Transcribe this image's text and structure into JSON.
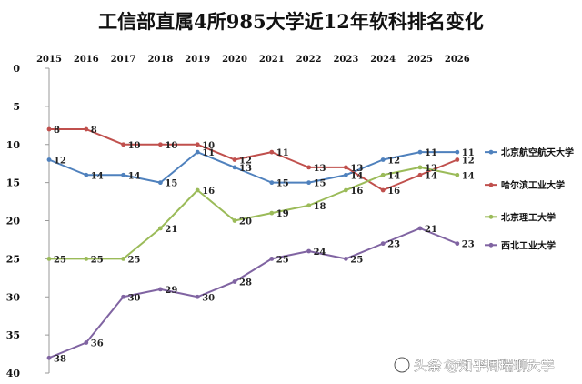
{
  "chart_data": {
    "type": "line",
    "title": "工信部直属4所985大学近12年软科排名变化",
    "x": [
      "2015",
      "2016",
      "2017",
      "2018",
      "2019",
      "2020",
      "2021",
      "2022",
      "2023",
      "2024",
      "2025",
      "2026"
    ],
    "ylim": [
      0,
      40
    ],
    "y_inverted": true,
    "y_ticks": [
      0,
      5,
      10,
      15,
      20,
      25,
      30,
      35,
      40
    ],
    "grid": false,
    "legend_position": "right",
    "series": [
      {
        "name": "北京航空航天大学",
        "color": "#4f81bd",
        "values": [
          12,
          14,
          14,
          15,
          11,
          13,
          15,
          15,
          14,
          12,
          11,
          11
        ]
      },
      {
        "name": "哈尔滨工业大学",
        "color": "#c0504d",
        "values": [
          8,
          8,
          10,
          10,
          10,
          12,
          11,
          13,
          13,
          16,
          14,
          12
        ]
      },
      {
        "name": "北京理工大学",
        "color": "#9bbb59",
        "values": [
          25,
          25,
          25,
          21,
          16,
          20,
          19,
          18,
          16,
          14,
          13,
          14
        ]
      },
      {
        "name": "西北工业大学",
        "color": "#8064a2",
        "values": [
          38,
          36,
          30,
          29,
          30,
          28,
          25,
          24,
          25,
          23,
          21,
          23
        ]
      }
    ]
  },
  "watermark": {
    "text": "头条 @知乎周瑞聊大学",
    "faint_text": "公众号 · 星球数据派"
  }
}
